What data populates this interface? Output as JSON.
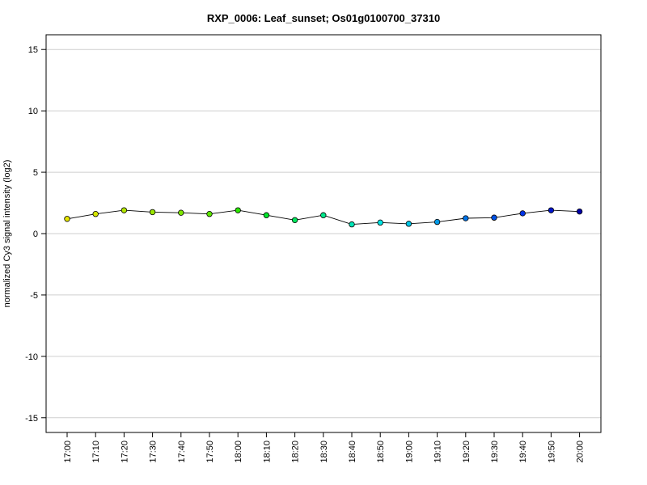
{
  "chart_data": {
    "type": "line",
    "title": "RXP_0006: Leaf_sunset; Os01g0100700_37310",
    "xlabel": "",
    "ylabel": "normalized Cy3 signal intensity (log2)",
    "ylim": [
      -16.2,
      16.2
    ],
    "yticks": [
      -15,
      -10,
      -5,
      0,
      5,
      10,
      15
    ],
    "grid": true,
    "categories": [
      "17:00",
      "17:10",
      "17:20",
      "17:30",
      "17:40",
      "17:50",
      "18:00",
      "18:10",
      "18:20",
      "18:30",
      "18:40",
      "18:50",
      "19:00",
      "19:10",
      "19:20",
      "19:30",
      "19:40",
      "19:50",
      "20:00"
    ],
    "series": [
      {
        "values": [
          1.2,
          1.6,
          1.9,
          1.75,
          1.7,
          1.6,
          1.9,
          1.5,
          1.1,
          1.5,
          0.75,
          0.9,
          0.8,
          0.95,
          1.25,
          1.3,
          1.65,
          1.9,
          1.8
        ],
        "point_colors": [
          "#e6e600",
          "#d6e600",
          "#b3e600",
          "#9be600",
          "#7ee600",
          "#5be600",
          "#2be600",
          "#00e62b",
          "#00e65b",
          "#00e68a",
          "#00e6b8",
          "#00e6e6",
          "#00c6e6",
          "#0099e6",
          "#0073e6",
          "#0052e6",
          "#0033e6",
          "#0015cc",
          "#0000aa"
        ]
      }
    ]
  }
}
